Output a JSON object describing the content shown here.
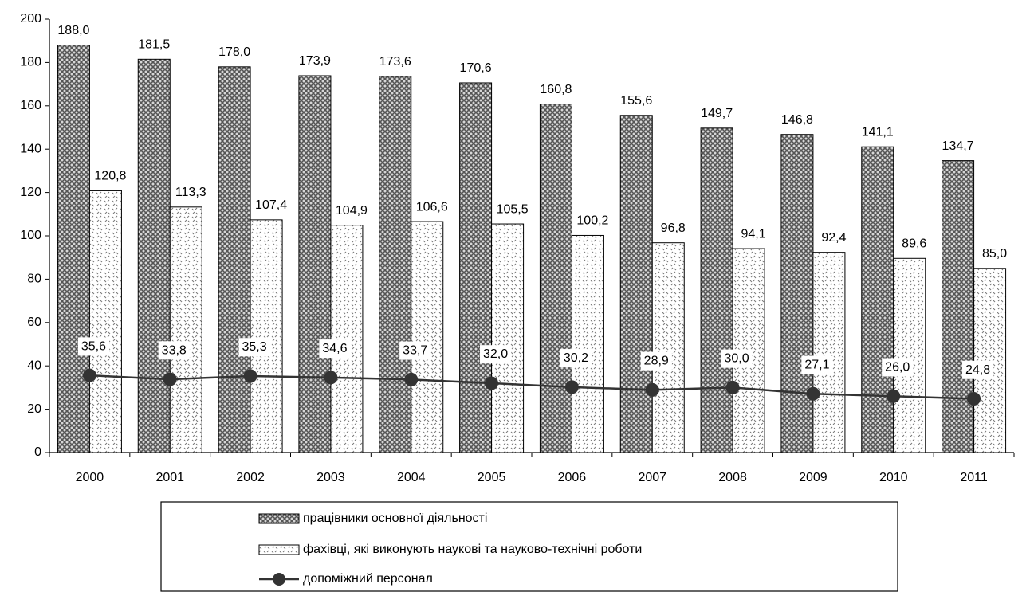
{
  "chart_data": {
    "type": "bar_line",
    "categories": [
      "2000",
      "2001",
      "2002",
      "2003",
      "2004",
      "2005",
      "2006",
      "2007",
      "2008",
      "2009",
      "2010",
      "2011"
    ],
    "series": [
      {
        "name": "працівники основної діяльності",
        "color": "#555555",
        "type": "bar",
        "values": [
          188.0,
          181.5,
          178.0,
          173.9,
          173.6,
          170.6,
          160.8,
          155.6,
          149.7,
          146.8,
          141.1,
          134.7
        ],
        "value_labels": [
          "188,0",
          "181,5",
          "178,0",
          "173,9",
          "173,6",
          "170,6",
          "160,8",
          "155,6",
          "149,7",
          "146,8",
          "141,1",
          "134,7"
        ]
      },
      {
        "name": "фахівці, які виконують наукові та науково-технічні роботи",
        "color": "#777777",
        "type": "bar",
        "values": [
          120.8,
          113.3,
          107.4,
          104.9,
          106.6,
          105.5,
          100.2,
          96.8,
          94.1,
          92.4,
          89.6,
          85.0
        ],
        "value_labels": [
          "120,8",
          "113,3",
          "107,4",
          "104,9",
          "106,6",
          "105,5",
          "100,2",
          "96,8",
          "94,1",
          "92,4",
          "89,6",
          "85,0"
        ]
      },
      {
        "name": "допоміжний персонал",
        "color": "#333333",
        "type": "line",
        "values": [
          35.6,
          33.8,
          35.3,
          34.6,
          33.7,
          32.0,
          30.2,
          28.9,
          30.0,
          27.1,
          26.0,
          24.8
        ],
        "value_labels": [
          "35,6",
          "33,8",
          "35,3",
          "34,6",
          "33,7",
          "32,0",
          "30,2",
          "28,9",
          "30,0",
          "27,1",
          "26,0",
          "24,8"
        ]
      }
    ],
    "ylim": [
      0,
      200
    ],
    "yticks": [
      0,
      20,
      40,
      60,
      80,
      100,
      120,
      140,
      160,
      180,
      200
    ],
    "grid": false,
    "legend": "bottom"
  }
}
